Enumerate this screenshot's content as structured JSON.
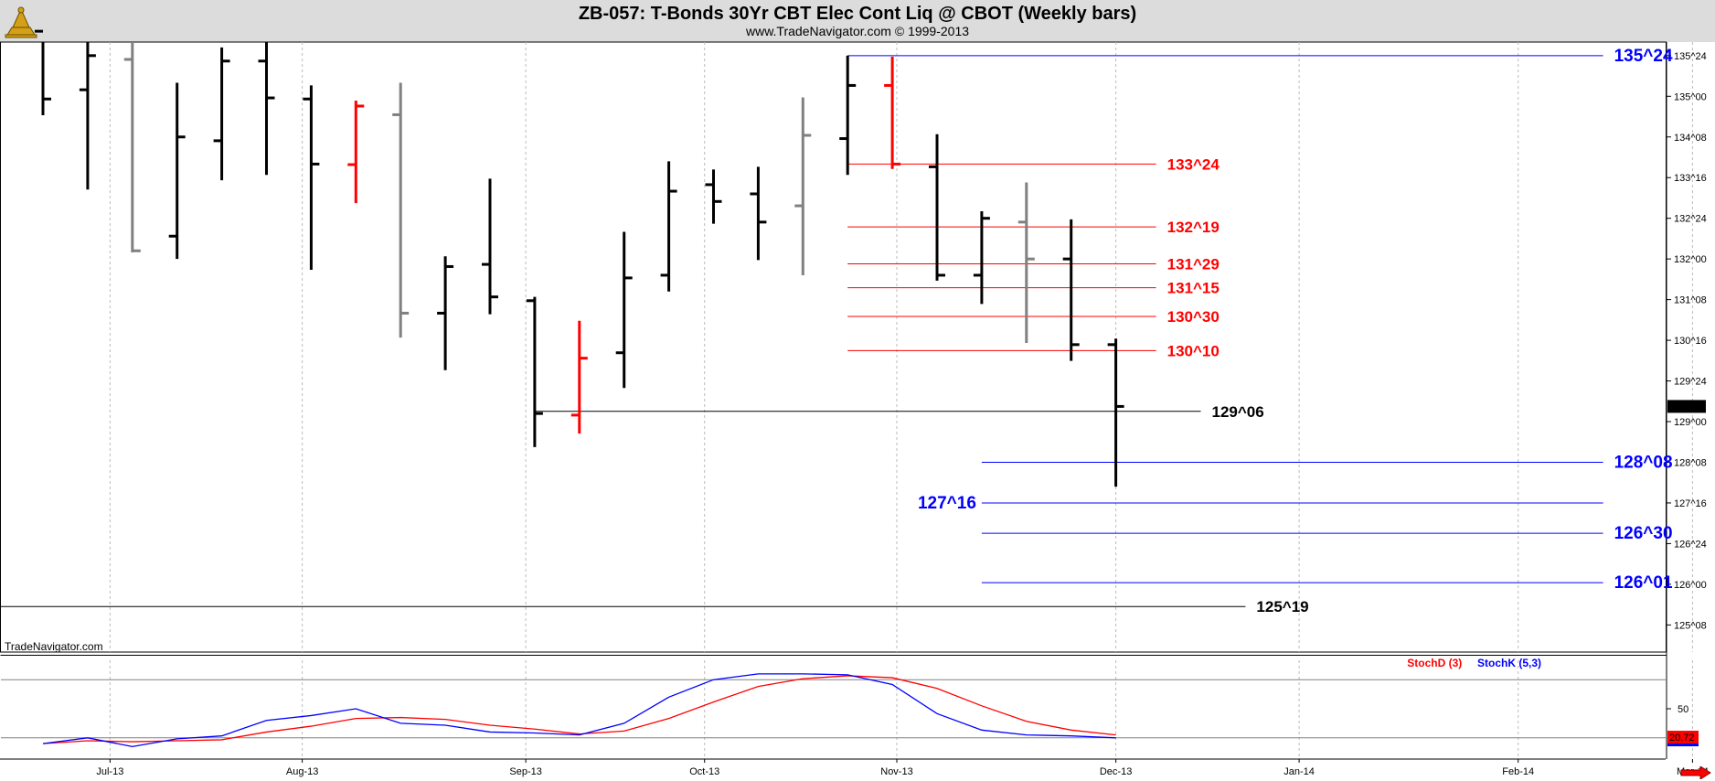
{
  "header": {
    "title": "ZB-057:  T-Bonds 30Yr CBT Elec Cont Liq @ CBOT  (Weekly bars)",
    "subtitle": "www.TradeNavigator.com © 1999-2013"
  },
  "watermark": "TradeNavigator.com",
  "colors": {
    "header_bg": "#dcdcdc",
    "up_bar": "#000000",
    "mid_bar": "#808080",
    "red_bar": "#ff0000",
    "blue_level": "#0000ff",
    "red_level": "#ff0000",
    "black_level": "#000000",
    "stochd": "#ff0000",
    "stochk": "#0000ff"
  },
  "chart_data": [
    {
      "type": "ohlc",
      "name": "price",
      "y_unit": "32nds (e.g. 135^24 = 135 + 24/32)",
      "ylim": [
        124.75,
        136.0
      ],
      "y_ticks": [
        {
          "v": 135.75,
          "label": "135^24"
        },
        {
          "v": 135.0,
          "label": "135^00"
        },
        {
          "v": 134.25,
          "label": "134^08"
        },
        {
          "v": 133.5,
          "label": "133^16"
        },
        {
          "v": 132.75,
          "label": "132^24"
        },
        {
          "v": 132.0,
          "label": "132^00"
        },
        {
          "v": 131.25,
          "label": "131^08"
        },
        {
          "v": 130.5,
          "label": "130^16"
        },
        {
          "v": 129.75,
          "label": "129^24"
        },
        {
          "v": 129.0,
          "label": "129^00"
        },
        {
          "v": 128.25,
          "label": "128^08"
        },
        {
          "v": 127.5,
          "label": "127^16"
        },
        {
          "v": 126.75,
          "label": "126^24"
        },
        {
          "v": 126.0,
          "label": "126^00"
        },
        {
          "v": 125.25,
          "label": "125^08"
        }
      ],
      "x_labels": [
        {
          "w": 1.5,
          "label": "Jul-13"
        },
        {
          "w": 5.8,
          "label": "Aug-13"
        },
        {
          "w": 10.8,
          "label": "Sep-13"
        },
        {
          "w": 14.8,
          "label": "Oct-13"
        },
        {
          "w": 19.1,
          "label": "Nov-13"
        },
        {
          "w": 24.0,
          "label": "Dec-13"
        },
        {
          "w": 28.1,
          "label": "Jan-14"
        },
        {
          "w": 33.0,
          "label": "Feb-14"
        },
        {
          "w": 36.9,
          "label": "Mar-14"
        }
      ],
      "x_grid": [
        1.5,
        5.8,
        10.8,
        14.8,
        19.1,
        24.0,
        28.1,
        33.0,
        36.9
      ],
      "last_price": {
        "v": 129.28,
        "label": "129^09"
      },
      "bars": [
        {
          "w": 0,
          "o": 136.2,
          "h": 136.2,
          "l": 134.65,
          "c": 134.95,
          "color": "up"
        },
        {
          "w": 1,
          "o": 135.12,
          "h": 136.2,
          "l": 133.28,
          "c": 135.75,
          "color": "up"
        },
        {
          "w": 2,
          "o": 135.68,
          "h": 136.2,
          "l": 132.12,
          "c": 132.15,
          "color": "mid"
        },
        {
          "w": 3,
          "o": 132.42,
          "h": 135.25,
          "l": 132.0,
          "c": 134.25,
          "color": "up"
        },
        {
          "w": 4,
          "o": 134.18,
          "h": 135.9,
          "l": 133.45,
          "c": 135.65,
          "color": "up"
        },
        {
          "w": 5,
          "o": 135.65,
          "h": 136.0,
          "l": 133.55,
          "c": 134.97,
          "color": "up"
        },
        {
          "w": 6,
          "o": 134.95,
          "h": 135.2,
          "l": 131.8,
          "c": 133.75,
          "color": "up"
        },
        {
          "w": 7,
          "o": 133.74,
          "h": 134.92,
          "l": 133.03,
          "c": 134.82,
          "color": "red"
        },
        {
          "w": 8,
          "o": 134.66,
          "h": 135.25,
          "l": 130.55,
          "c": 131.0,
          "color": "mid"
        },
        {
          "w": 9,
          "o": 131.0,
          "h": 132.05,
          "l": 129.95,
          "c": 131.86,
          "color": "up"
        },
        {
          "w": 10,
          "o": 131.9,
          "h": 133.48,
          "l": 130.98,
          "c": 131.3,
          "color": "up"
        },
        {
          "w": 11,
          "o": 131.23,
          "h": 131.3,
          "l": 128.53,
          "c": 129.15,
          "color": "up"
        },
        {
          "w": 12,
          "o": 129.12,
          "h": 130.86,
          "l": 128.78,
          "c": 130.17,
          "color": "red"
        },
        {
          "w": 13,
          "o": 130.27,
          "h": 132.5,
          "l": 129.62,
          "c": 131.65,
          "color": "up"
        },
        {
          "w": 14,
          "o": 131.7,
          "h": 133.8,
          "l": 131.4,
          "c": 133.25,
          "color": "up"
        },
        {
          "w": 15,
          "o": 133.37,
          "h": 133.65,
          "l": 132.65,
          "c": 133.06,
          "color": "up"
        },
        {
          "w": 16,
          "o": 133.2,
          "h": 133.7,
          "l": 131.98,
          "c": 132.68,
          "color": "up"
        },
        {
          "w": 17,
          "o": 132.98,
          "h": 134.98,
          "l": 131.7,
          "c": 134.28,
          "color": "mid"
        },
        {
          "w": 18,
          "o": 134.22,
          "h": 135.75,
          "l": 133.55,
          "c": 135.2,
          "color": "up"
        },
        {
          "w": 19,
          "o": 135.2,
          "h": 135.73,
          "l": 133.66,
          "c": 133.75,
          "color": "red"
        },
        {
          "w": 20,
          "o": 133.7,
          "h": 134.3,
          "l": 131.6,
          "c": 131.7,
          "color": "up"
        },
        {
          "w": 21,
          "o": 131.7,
          "h": 132.88,
          "l": 131.17,
          "c": 132.75,
          "color": "up"
        },
        {
          "w": 22,
          "o": 132.68,
          "h": 133.41,
          "l": 130.45,
          "c": 132.0,
          "color": "mid"
        },
        {
          "w": 23,
          "o": 132.0,
          "h": 132.73,
          "l": 130.12,
          "c": 130.42,
          "color": "up"
        },
        {
          "w": 24,
          "o": 130.42,
          "h": 130.53,
          "l": 127.8,
          "c": 129.28,
          "color": "up"
        }
      ],
      "levels": [
        {
          "v": 135.75,
          "w_from": 18.0,
          "w_to": 34.9,
          "color": "blue",
          "label": "135^24",
          "label_side": "right"
        },
        {
          "v": 133.75,
          "w_from": 18.0,
          "w_to": 24.9,
          "color": "red",
          "label": "133^24",
          "label_side": "right"
        },
        {
          "v": 132.59,
          "w_from": 18.0,
          "w_to": 24.9,
          "color": "red",
          "label": "132^19",
          "label_side": "right"
        },
        {
          "v": 131.91,
          "w_from": 18.0,
          "w_to": 24.9,
          "color": "red",
          "label": "131^29",
          "label_side": "right"
        },
        {
          "v": 131.47,
          "w_from": 18.0,
          "w_to": 24.9,
          "color": "red",
          "label": "131^15",
          "label_side": "right"
        },
        {
          "v": 130.94,
          "w_from": 18.0,
          "w_to": 24.9,
          "color": "red",
          "label": "130^30",
          "label_side": "right"
        },
        {
          "v": 130.31,
          "w_from": 18.0,
          "w_to": 24.9,
          "color": "red",
          "label": "130^10",
          "label_side": "right"
        },
        {
          "v": 129.19,
          "w_from": 11.0,
          "w_to": 25.9,
          "color": "black",
          "label": "129^06",
          "label_side": "right"
        },
        {
          "v": 128.25,
          "w_from": 21.0,
          "w_to": 34.9,
          "color": "blue",
          "label": "128^08",
          "label_side": "right"
        },
        {
          "v": 127.5,
          "w_from": 21.0,
          "w_to": 34.9,
          "color": "blue",
          "label": "127^16",
          "label_side": "left"
        },
        {
          "v": 126.94,
          "w_from": 21.0,
          "w_to": 34.9,
          "color": "blue",
          "label": "126^30",
          "label_side": "right"
        },
        {
          "v": 126.03,
          "w_from": 21.0,
          "w_to": 34.9,
          "color": "blue",
          "label": "126^01",
          "label_side": "right"
        },
        {
          "v": 125.59,
          "w_from": -1.0,
          "w_to": 26.9,
          "color": "black",
          "label": "125^19",
          "label_side": "right"
        }
      ]
    },
    {
      "type": "line",
      "name": "stochastic",
      "ylim": [
        0,
        100
      ],
      "y_ticks": [
        {
          "v": 50,
          "label": "50"
        }
      ],
      "ref_lines": [
        80,
        20
      ],
      "legend": [
        {
          "name": "StochD (3)",
          "color": "#ff0000"
        },
        {
          "name": "StochK (5,3)",
          "color": "#0000ff"
        }
      ],
      "last_value": {
        "v": 20.72,
        "label": "20.72"
      },
      "x": [
        0,
        1,
        2,
        3,
        4,
        5,
        6,
        7,
        8,
        9,
        10,
        11,
        12,
        13,
        14,
        15,
        16,
        17,
        18,
        19,
        20,
        21,
        22,
        23,
        24
      ],
      "series": [
        {
          "name": "StochD (3)",
          "color": "#ff0000",
          "values": [
            14,
            17,
            16,
            17,
            18,
            26,
            32,
            40,
            41,
            39,
            33,
            29,
            24,
            27,
            40,
            57,
            73,
            81,
            84,
            82,
            71,
            53,
            37,
            28,
            23
          ]
        },
        {
          "name": "StochK (5,3)",
          "color": "#0000ff",
          "values": [
            14,
            20,
            11,
            19,
            22,
            38,
            43,
            50,
            35,
            33,
            26,
            25,
            23,
            35,
            62,
            80,
            86,
            86,
            85,
            75,
            45,
            28,
            23,
            22,
            20
          ]
        }
      ]
    }
  ]
}
